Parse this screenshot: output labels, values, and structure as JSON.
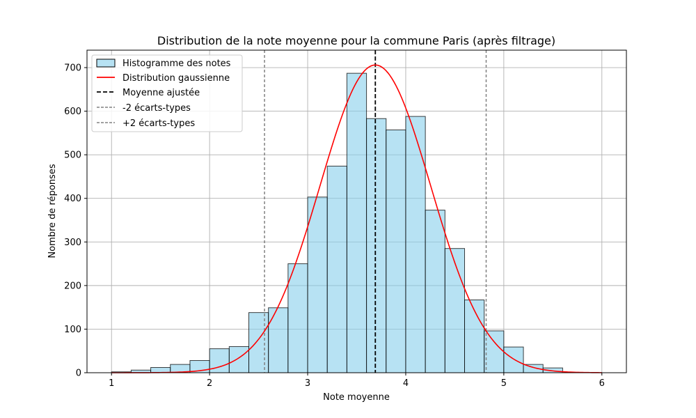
{
  "chart_data": {
    "type": "bar",
    "title": "Distribution de la note moyenne pour la commune Paris (après filtrage)",
    "xlabel": "Note moyenne",
    "ylabel": "Nombre de réponses",
    "xlim": [
      0.75,
      6.25
    ],
    "ylim": [
      0,
      740
    ],
    "xticks": [
      1,
      2,
      3,
      4,
      5,
      6
    ],
    "yticks": [
      0,
      100,
      200,
      300,
      400,
      500,
      600,
      700
    ],
    "grid": true,
    "legend_position": "top-left",
    "histogram": {
      "name": "Histogramme des notes",
      "color": "#87ceeb",
      "bin_edges": [
        1.0,
        1.2,
        1.4,
        1.6,
        1.8,
        2.0,
        2.2,
        2.4,
        2.6,
        2.8,
        3.0,
        3.2,
        3.4,
        3.6,
        3.8,
        4.0,
        4.2,
        4.4,
        4.6,
        4.8,
        5.0,
        5.2,
        5.4,
        5.6,
        5.8,
        6.0
      ],
      "values": [
        2,
        6,
        12,
        19,
        28,
        55,
        60,
        138,
        149,
        250,
        403,
        474,
        687,
        583,
        557,
        588,
        373,
        285,
        167,
        96,
        59,
        19,
        11,
        0,
        0
      ]
    },
    "gaussian": {
      "name": "Distribution gaussienne",
      "color": "#ff0000",
      "mean": 3.69,
      "peak": 706,
      "sigma": 0.565,
      "x_range": [
        1,
        6
      ]
    },
    "mean_line": {
      "name": "Moyenne ajustée",
      "x": 3.69,
      "color": "#000000"
    },
    "minus_2sd_line": {
      "name": "-2 écarts-types",
      "x": 2.56,
      "color": "#808080"
    },
    "plus_2sd_line": {
      "name": "+2 écarts-types",
      "x": 4.82,
      "color": "#808080"
    }
  }
}
